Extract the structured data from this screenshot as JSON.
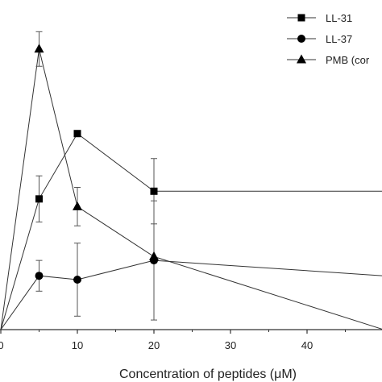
{
  "chart_data": {
    "type": "line",
    "title": "",
    "xlabel": "Concentration of peptides (μM)",
    "ylabel": "",
    "xlim": [
      0,
      50
    ],
    "ylim": [
      0,
      9
    ],
    "x_ticks": [
      0,
      10,
      20,
      30,
      40
    ],
    "x_tick_labels": [
      "0",
      "10",
      "20",
      "30",
      "40"
    ],
    "grid": false,
    "legend_position": "top-right",
    "series": [
      {
        "name": "LL-31",
        "marker": "square",
        "x": [
          0,
          5,
          10,
          20,
          50
        ],
        "y": [
          0,
          3.4,
          5.1,
          3.6,
          3.6
        ],
        "err": [
          0,
          0.6,
          0,
          0.85,
          0
        ]
      },
      {
        "name": "LL-37",
        "marker": "circle",
        "x": [
          0,
          5,
          10,
          20,
          50
        ],
        "y": [
          0,
          1.4,
          1.3,
          1.8,
          1.4
        ],
        "err": [
          0,
          0.4,
          0.95,
          1.55,
          0
        ]
      },
      {
        "name": "PMB (cor",
        "marker": "triangle",
        "x": [
          0,
          5,
          10,
          20,
          50
        ],
        "y": [
          0,
          7.3,
          3.2,
          1.9,
          0
        ],
        "err": [
          0,
          0.45,
          0.5,
          0,
          0
        ]
      }
    ]
  }
}
